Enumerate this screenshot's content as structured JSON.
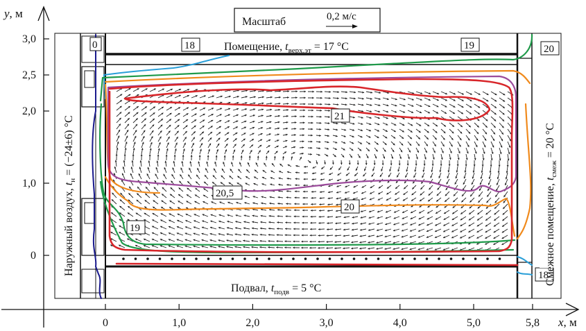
{
  "axes": {
    "x": {
      "symbol": "x",
      "unit": ", м",
      "ticks": [
        {
          "value": 0,
          "label": "0"
        },
        {
          "value": 1,
          "label": "1,0"
        },
        {
          "value": 2,
          "label": "2,0"
        },
        {
          "value": 3,
          "label": "3,0"
        },
        {
          "value": 4,
          "label": "4,0"
        },
        {
          "value": 5,
          "label": "5,0"
        },
        {
          "value": 5.8,
          "label": "5,8"
        }
      ]
    },
    "y": {
      "symbol": "y",
      "unit": ", м",
      "ticks": [
        {
          "value": 0,
          "label": "0"
        },
        {
          "value": 1,
          "label": "1,0"
        },
        {
          "value": 2,
          "label": "2,0"
        },
        {
          "value": 2.5,
          "label": "2,5"
        },
        {
          "value": 3,
          "label": "3,0"
        }
      ]
    }
  },
  "scale_box": {
    "label": "Масштаб",
    "value": "0,2 м/с"
  },
  "boundaries": {
    "top": {
      "prefix": "Помещение, ",
      "t": "t",
      "sub": "верх.эт",
      "suffix": " = 17 °C"
    },
    "bottom": {
      "prefix": "Подвал, ",
      "t": "t",
      "sub": "подв",
      "suffix": " = 5 °C"
    },
    "left": {
      "prefix": "Наружный воздух, ",
      "t": "t",
      "sub": "н",
      "suffix": " = (−24±6) °C"
    },
    "right": {
      "prefix": "Смежное помещение, ",
      "t": "t",
      "sub": "смеж",
      "suffix": " = 20 °C"
    }
  },
  "isotherm_labels": {
    "l0": "0",
    "l18a": "18",
    "l19a": "19",
    "l20a": "20",
    "l21": "21",
    "l205": "20,5",
    "l20b": "20",
    "l19b": "19",
    "l18b": "18"
  },
  "colors": {
    "iso0": "#1a1a8c",
    "iso18": "#2a9fd8",
    "iso19": "#1f9a4a",
    "iso20": "#f08a1c",
    "iso205": "#9b4a9b",
    "iso21": "#d8262a",
    "structure": "#111111"
  }
}
